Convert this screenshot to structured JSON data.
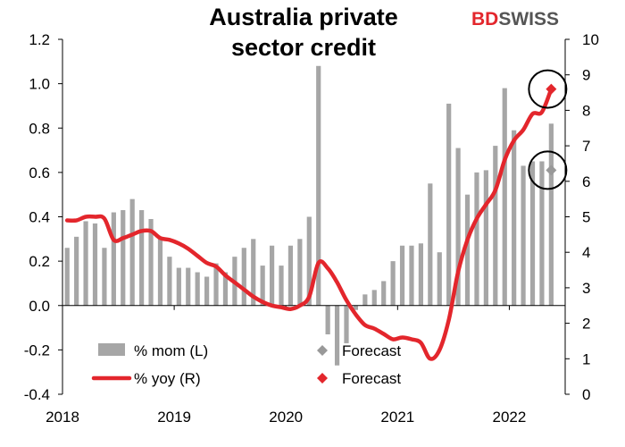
{
  "logo": {
    "text_bd": "BD",
    "text_swiss": "SWISS",
    "bd_color": "#e3262c",
    "swiss_color": "#555555"
  },
  "chart_data": {
    "type": "bar+line",
    "title_lines": [
      "Australia private",
      "sector credit"
    ],
    "x_tick_labels": [
      "2018",
      "2019",
      "2020",
      "2021",
      "2022"
    ],
    "left_axis": {
      "min": -0.4,
      "max": 1.2,
      "ticks": [
        "-0.4",
        "-0.2",
        "0.0",
        "0.2",
        "0.4",
        "0.6",
        "0.8",
        "1.0",
        "1.2"
      ]
    },
    "right_axis": {
      "min": 0,
      "max": 10,
      "ticks": [
        "0",
        "1",
        "2",
        "3",
        "4",
        "5",
        "6",
        "7",
        "8",
        "9",
        "10"
      ]
    },
    "colors": {
      "bars": "#a6a6a6",
      "line": "#e3262c",
      "forecast_mom": "#999999",
      "forecast_yoy": "#e3262c"
    },
    "series": [
      {
        "name": "% mom (L)",
        "kind": "bar",
        "axis": "left",
        "start": "2018-01",
        "values": [
          0.26,
          0.31,
          0.38,
          0.37,
          0.26,
          0.42,
          0.43,
          0.48,
          0.43,
          0.39,
          0.3,
          0.22,
          0.17,
          0.17,
          0.15,
          0.13,
          0.19,
          0.15,
          0.22,
          0.26,
          0.3,
          0.18,
          0.27,
          0.18,
          0.27,
          0.3,
          0.4,
          1.08,
          -0.13,
          -0.27,
          -0.17,
          -0.02,
          0.05,
          0.07,
          0.11,
          0.2,
          0.27,
          0.27,
          0.28,
          0.55,
          0.24,
          0.91,
          0.71,
          0.5,
          0.6,
          0.61,
          0.72,
          0.98,
          0.79,
          0.63,
          0.65,
          0.65,
          0.82
        ]
      },
      {
        "name": "% yoy (R)",
        "kind": "line",
        "axis": "right",
        "start": "2018-01",
        "values": [
          4.9,
          4.9,
          5.0,
          5.0,
          4.95,
          4.35,
          4.4,
          4.5,
          4.6,
          4.6,
          4.4,
          4.35,
          4.25,
          4.1,
          3.9,
          3.7,
          3.6,
          3.35,
          3.15,
          2.95,
          2.75,
          2.6,
          2.5,
          2.45,
          2.4,
          2.5,
          2.75,
          3.7,
          3.55,
          3.15,
          2.65,
          2.25,
          1.95,
          1.85,
          1.7,
          1.55,
          1.6,
          1.55,
          1.45,
          1.0,
          1.25,
          2.1,
          3.45,
          4.35,
          4.95,
          5.35,
          5.75,
          6.6,
          7.15,
          7.45,
          7.9,
          7.95,
          8.6
        ]
      },
      {
        "name": "Forecast",
        "kind": "marker",
        "axis": "left",
        "date": "2022-05",
        "value": 0.61
      },
      {
        "name": "Forecast",
        "kind": "marker",
        "axis": "right",
        "date": "2022-05",
        "value": 8.6
      }
    ],
    "legend": [
      {
        "label": "% mom (L)",
        "symbol": "bar"
      },
      {
        "label": "% yoy (R)",
        "symbol": "line"
      },
      {
        "label": "Forecast",
        "symbol": "diamond-gray"
      },
      {
        "label": "Forecast",
        "symbol": "diamond-red"
      }
    ],
    "legend_position": "bottom-left",
    "grid": false
  }
}
